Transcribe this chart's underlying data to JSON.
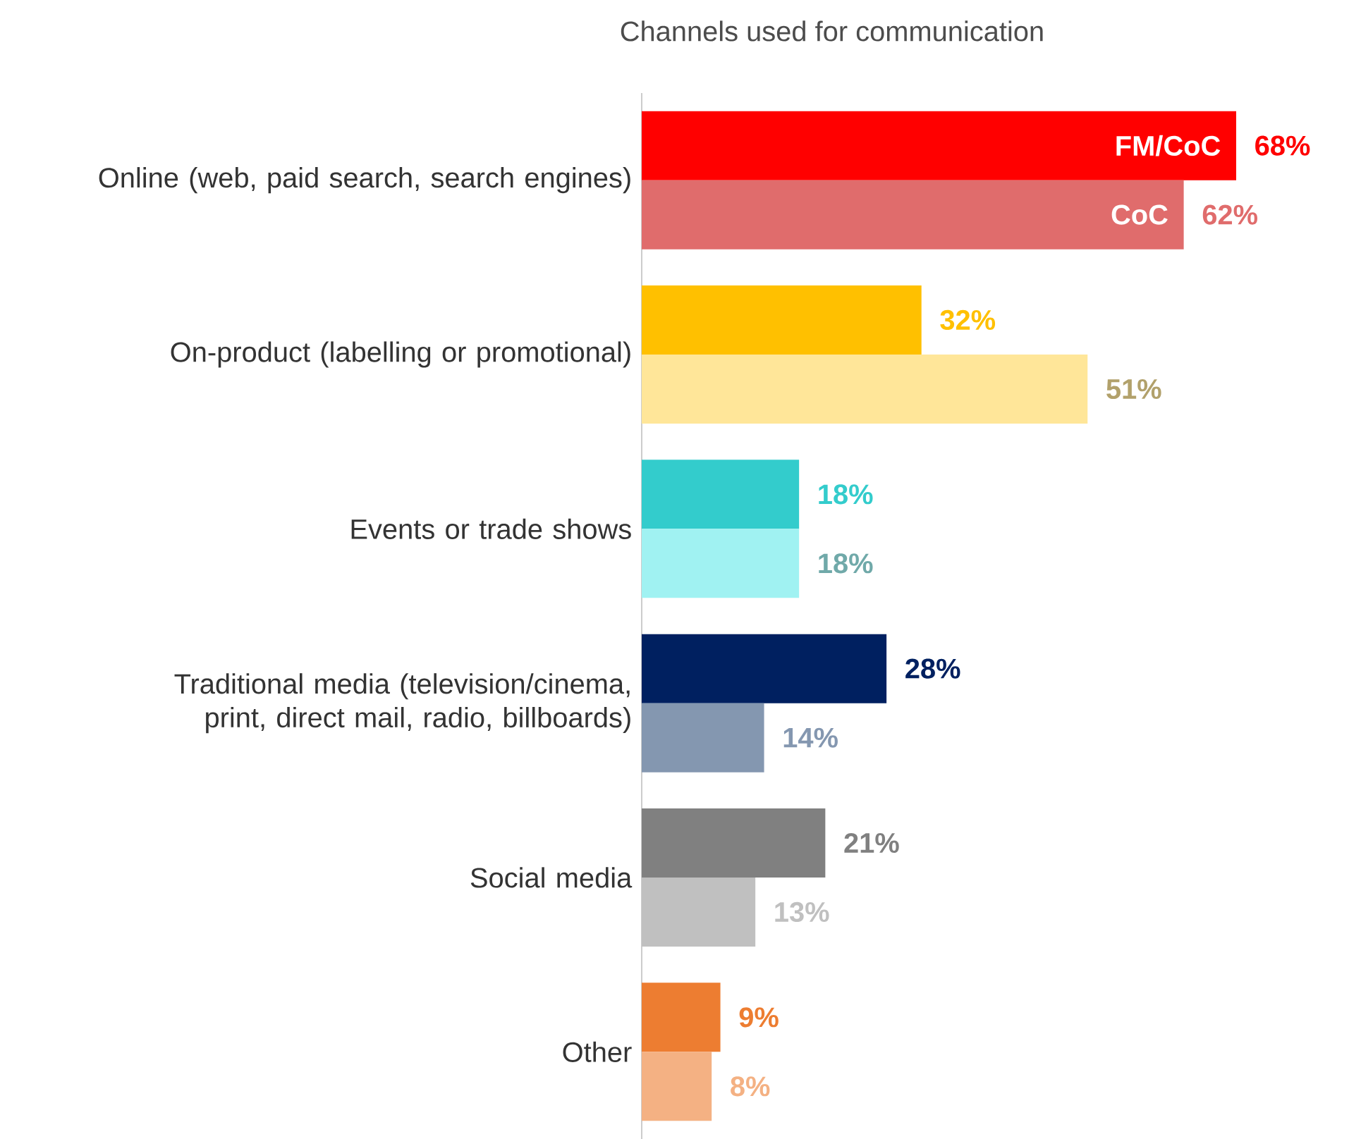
{
  "chart_data": {
    "type": "bar",
    "orientation": "horizontal",
    "title": "Channels used for communication",
    "categories": [
      "Online (web, paid search, search engines)",
      "On-product (labelling or promotional)",
      "Events or trade shows",
      "Traditional media (television/cinema, print, direct mail, radio, billboards)",
      "Social media",
      "Other"
    ],
    "series": [
      {
        "name": "FM/CoC",
        "colors": [
          "#ff0000",
          "#ffc000",
          "#33cccc",
          "#002060",
          "#808080",
          "#ed7d31"
        ],
        "values": [
          68,
          32,
          18,
          28,
          21,
          9
        ],
        "value_labels": [
          "68%",
          "32%",
          "18%",
          "28%",
          "21%",
          "9%"
        ]
      },
      {
        "name": "CoC",
        "colors": [
          "#e06c6c",
          "#ffe699",
          "#a0f2f2",
          "#8497b0",
          "#c0c0c0",
          "#f4b183"
        ],
        "values": [
          62,
          51,
          18,
          14,
          13,
          8
        ],
        "value_labels": [
          "62%",
          "51%",
          "18%",
          "14%",
          "13%",
          "8%"
        ]
      }
    ]
  }
}
